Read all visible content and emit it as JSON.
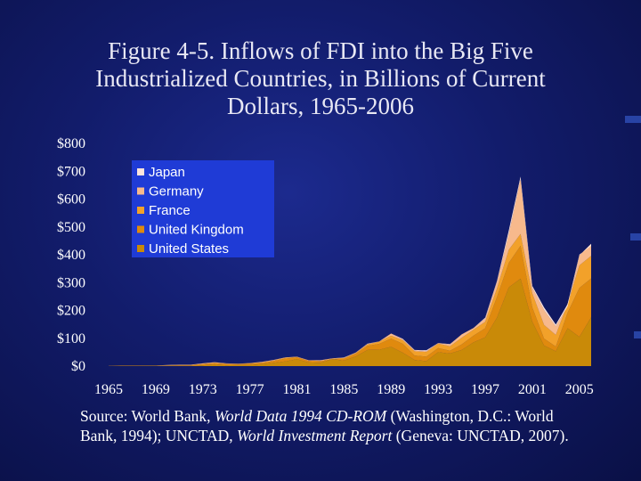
{
  "slide": {
    "title_lines": [
      "Figure 4-5. Inflows of FDI into the Big Five",
      "Industrialized Countries, in Billions of Current",
      "Dollars, 1965-2006"
    ],
    "source": {
      "prefix": "Source: World Bank, ",
      "italic1": "World Data 1994 CD-ROM",
      "mid1": " (Washington, D.C.: World Bank, 1994); UNCTAD, ",
      "italic2": "World Investment Report",
      "suffix": " (Geneva: UNCTAD, 2007)."
    },
    "colors": {
      "background": "#121c6b",
      "legend_bg": "#1f3bd6"
    }
  },
  "chart_data": {
    "type": "area",
    "stacked": true,
    "x": [
      1965,
      1966,
      1967,
      1968,
      1969,
      1970,
      1971,
      1972,
      1973,
      1974,
      1975,
      1976,
      1977,
      1978,
      1979,
      1980,
      1981,
      1982,
      1983,
      1984,
      1985,
      1986,
      1987,
      1988,
      1989,
      1990,
      1991,
      1992,
      1993,
      1994,
      1995,
      1996,
      1997,
      1998,
      1999,
      2000,
      2001,
      2002,
      2003,
      2004,
      2005,
      2006
    ],
    "xticks": [
      1965,
      1969,
      1973,
      1977,
      1981,
      1985,
      1989,
      1993,
      1997,
      2001,
      2005
    ],
    "xtick_labels": [
      "1965",
      "1969",
      "1973",
      "1977",
      "1981",
      "1985",
      "1989",
      "1993",
      "1997",
      "2001",
      "2005"
    ],
    "ylim": [
      0,
      800
    ],
    "yticks": [
      0,
      100,
      200,
      300,
      400,
      500,
      600,
      700,
      800
    ],
    "ytick_labels": [
      "$0",
      "$100",
      "$200",
      "$300",
      "$400",
      "$500",
      "$600",
      "$700",
      "$800"
    ],
    "legend_position": "top-left",
    "series": [
      {
        "name": "United States",
        "color": "#c98a08",
        "values": [
          0,
          1,
          1,
          1,
          1,
          1,
          1,
          1,
          3,
          5,
          3,
          4,
          4,
          7,
          12,
          17,
          25,
          13,
          12,
          25,
          20,
          35,
          58,
          59,
          69,
          48,
          22,
          18,
          50,
          45,
          58,
          85,
          103,
          174,
          283,
          314,
          159,
          74,
          53,
          136,
          105,
          175
        ]
      },
      {
        "name": "United Kingdom",
        "color": "#e08a0e",
        "values": [
          1,
          1,
          1,
          1,
          1,
          1,
          2,
          2,
          3,
          5,
          4,
          3,
          4,
          4,
          6,
          10,
          6,
          5,
          5,
          0,
          6,
          9,
          15,
          21,
          30,
          32,
          16,
          16,
          15,
          10,
          20,
          24,
          33,
          74,
          88,
          118,
          52,
          25,
          17,
          56,
          176,
          140
        ]
      },
      {
        "name": "France",
        "color": "#f2a12a",
        "values": [
          0,
          0,
          0,
          0,
          0,
          1,
          1,
          1,
          2,
          2,
          2,
          1,
          2,
          2,
          2,
          3,
          2,
          2,
          2,
          2,
          3,
          3,
          5,
          8,
          10,
          13,
          15,
          17,
          16,
          16,
          24,
          22,
          23,
          31,
          47,
          43,
          50,
          49,
          42,
          32,
          81,
          81
        ]
      },
      {
        "name": "Germany",
        "color": "#f7b98c",
        "values": [
          0,
          0,
          0,
          0,
          0,
          1,
          1,
          1,
          2,
          2,
          1,
          1,
          1,
          2,
          2,
          1,
          1,
          1,
          2,
          1,
          1,
          2,
          2,
          1,
          8,
          3,
          4,
          3,
          2,
          7,
          12,
          6,
          12,
          24,
          56,
          198,
          21,
          54,
          31,
          -9,
          36,
          43
        ]
      },
      {
        "name": "Japan",
        "color": "#fde4dc",
        "values": [
          0,
          0,
          0,
          0,
          0,
          0,
          0,
          0,
          0,
          0,
          0,
          0,
          0,
          0,
          0,
          0,
          0,
          0,
          0,
          0,
          1,
          0,
          1,
          0,
          0,
          2,
          1,
          3,
          0,
          1,
          0,
          0,
          3,
          3,
          13,
          8,
          6,
          9,
          6,
          8,
          3,
          -7
        ]
      }
    ]
  }
}
